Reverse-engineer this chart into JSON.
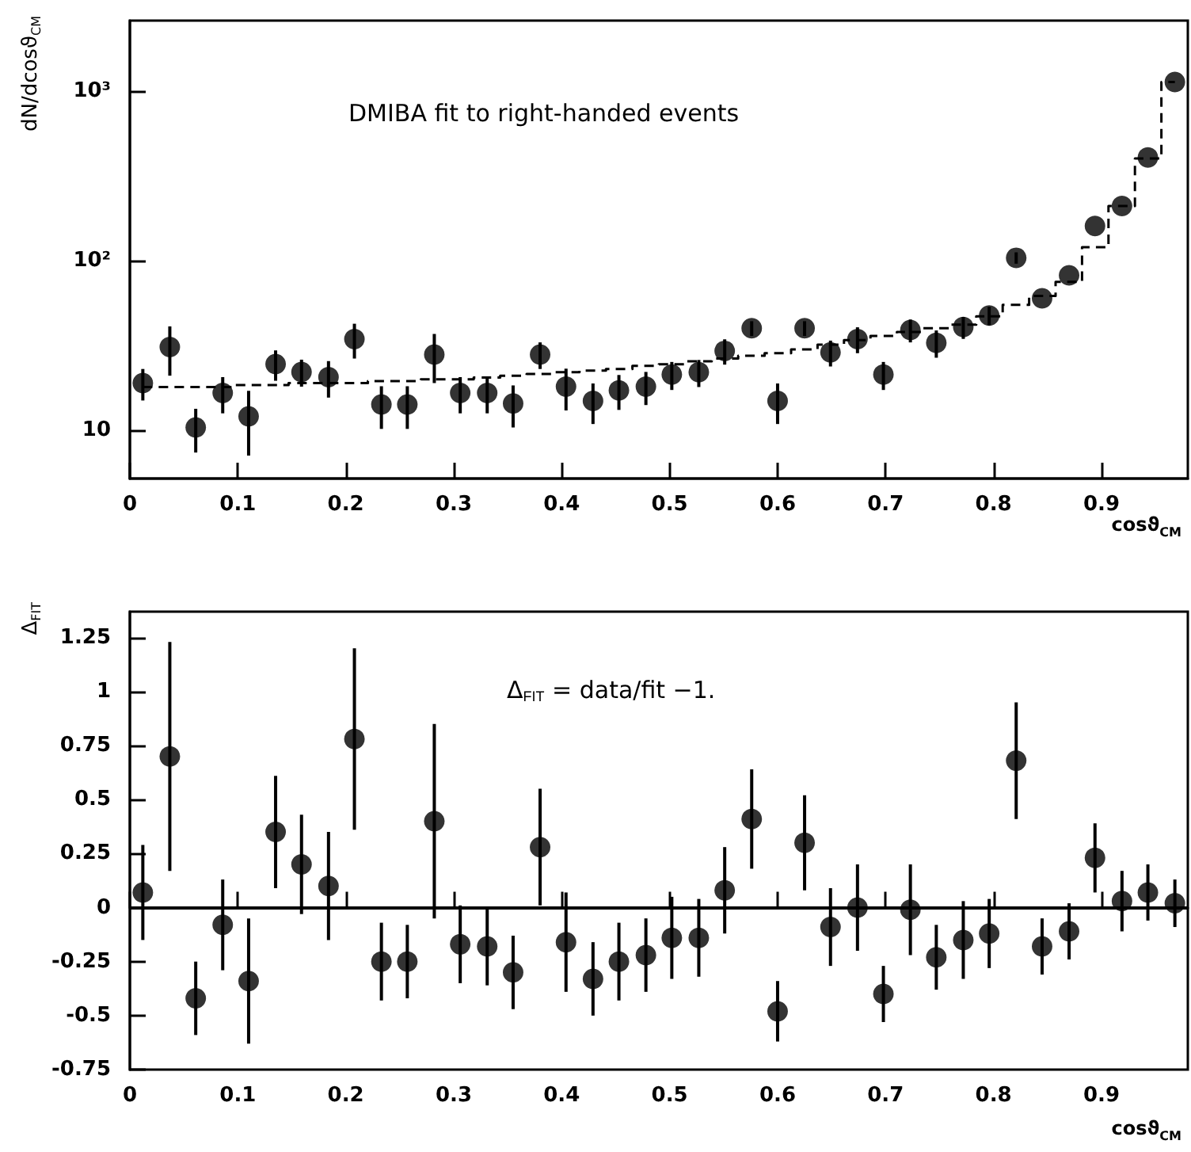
{
  "chart_data": [
    {
      "type": "scatter",
      "annotations": [
        "DMIBA fit to right-handed events"
      ],
      "xlabel": "cosϑ$_{CM}$",
      "ylabel": "dN/dcosϑ$_{CM}$",
      "log": "y",
      "grid": false,
      "marker": "circle",
      "xlim": [
        0,
        0.98
      ],
      "xticks": [
        0,
        0.1,
        0.2,
        0.3,
        0.4,
        0.5,
        0.6,
        0.7,
        0.8,
        0.9
      ],
      "ylim": [
        5.2,
        2600
      ],
      "yticks": [
        10,
        {
          "value": 100,
          "label": "10²"
        },
        {
          "value": 1000,
          "label": "10³"
        }
      ],
      "series": [
        {
          "color": "#000000",
          "x": [
            0.012,
            0.037,
            0.061,
            0.086,
            0.11,
            0.135,
            0.159,
            0.184,
            0.208,
            0.233,
            0.257,
            0.282,
            0.306,
            0.331,
            0.355,
            0.38,
            0.404,
            0.429,
            0.453,
            0.478,
            0.502,
            0.527,
            0.551,
            0.576,
            0.6,
            0.625,
            0.649,
            0.674,
            0.698,
            0.723,
            0.747,
            0.772,
            0.796,
            0.821,
            0.845,
            0.87,
            0.894,
            0.919,
            0.943,
            0.968
          ],
          "values": [
            19,
            31,
            10.4,
            16.6,
            12.1,
            24.6,
            22.1,
            20.6,
            34.5,
            14.2,
            14.2,
            28,
            16.6,
            16.6,
            14.4,
            28,
            18.1,
            14.9,
            17.2,
            18.1,
            21.3,
            22,
            29.4,
            40,
            14.9,
            40,
            28.8,
            34.5,
            21.3,
            39,
            32.8,
            40.6,
            47.5,
            104,
            60,
            82,
            160,
            210,
            406,
            1130
          ],
          "errors": [
            4,
            10,
            3,
            4,
            5,
            5,
            4,
            5,
            8,
            4,
            4,
            9,
            4,
            4,
            4,
            5,
            5,
            4,
            4,
            4,
            4,
            4,
            5,
            4,
            4,
            4,
            5,
            6,
            4,
            6,
            6,
            6,
            6,
            8,
            null,
            null,
            null,
            null,
            null,
            null
          ]
        },
        {
          "type": "step",
          "color": "#000000",
          "line_style": "dashed",
          "marker": "none",
          "x": [
            0.012,
            0.037,
            0.061,
            0.086,
            0.11,
            0.135,
            0.159,
            0.184,
            0.208,
            0.233,
            0.257,
            0.282,
            0.306,
            0.331,
            0.355,
            0.38,
            0.404,
            0.429,
            0.453,
            0.478,
            0.502,
            0.527,
            0.551,
            0.576,
            0.6,
            0.625,
            0.649,
            0.674,
            0.698,
            0.723,
            0.747,
            0.772,
            0.796,
            0.821,
            0.845,
            0.87,
            0.894,
            0.919,
            0.943,
            0.968
          ],
          "values": [
            18,
            18,
            18,
            18,
            18.5,
            18.5,
            19,
            19,
            19,
            19.5,
            19.5,
            20,
            20,
            20.5,
            21,
            21.5,
            22,
            22.5,
            23,
            24,
            24.5,
            25.5,
            26.5,
            27.5,
            28.5,
            30,
            32,
            34,
            36,
            38,
            40,
            42,
            47,
            55,
            62,
            75,
            120,
            210,
            400,
            1130
          ]
        }
      ]
    },
    {
      "type": "scatter",
      "annotations": [
        "Δ$_{FIT}$ = data/fit −1."
      ],
      "xlabel": "cosϑ$_{CM}$",
      "ylabel": "Δ$_{FIT}$",
      "grid": false,
      "marker": "circle",
      "xlim": [
        0,
        0.98
      ],
      "xticks": [
        0,
        0.1,
        0.2,
        0.3,
        0.4,
        0.5,
        0.6,
        0.7,
        0.8,
        0.9
      ],
      "ylim": [
        -0.75,
        1.37
      ],
      "yticks": [
        -0.75,
        -0.5,
        -0.25,
        0,
        0.25,
        0.5,
        0.75,
        1,
        1.25
      ],
      "ref_lines": [
        {
          "axis": "y",
          "value": 0,
          "color": "#000000",
          "line_style": "solid"
        }
      ],
      "series": [
        {
          "color": "#000000",
          "x": [
            0.012,
            0.037,
            0.061,
            0.086,
            0.11,
            0.135,
            0.159,
            0.184,
            0.208,
            0.233,
            0.257,
            0.282,
            0.306,
            0.331,
            0.355,
            0.38,
            0.404,
            0.429,
            0.453,
            0.478,
            0.502,
            0.527,
            0.551,
            0.576,
            0.6,
            0.625,
            0.649,
            0.674,
            0.698,
            0.723,
            0.747,
            0.772,
            0.796,
            0.821,
            0.845,
            0.87,
            0.894,
            0.919,
            0.943,
            0.968
          ],
          "values": [
            0.07,
            0.7,
            -0.42,
            -0.08,
            -0.34,
            0.35,
            0.2,
            0.1,
            0.78,
            -0.25,
            -0.25,
            0.4,
            -0.17,
            -0.18,
            -0.3,
            0.28,
            -0.16,
            -0.33,
            -0.25,
            -0.22,
            -0.14,
            -0.14,
            0.08,
            0.41,
            -0.48,
            0.3,
            -0.09,
            0,
            -0.4,
            -0.01,
            -0.23,
            -0.15,
            -0.12,
            0.68,
            -0.18,
            -0.11,
            0.23,
            0.03,
            0.07,
            0.02
          ],
          "errors": [
            0.22,
            0.53,
            0.17,
            0.21,
            0.29,
            0.26,
            0.23,
            0.25,
            0.42,
            0.18,
            0.17,
            0.45,
            0.18,
            0.18,
            0.17,
            0.27,
            0.23,
            0.17,
            0.18,
            0.17,
            0.19,
            0.18,
            0.2,
            0.23,
            0.14,
            0.22,
            0.18,
            0.2,
            0.13,
            0.21,
            0.15,
            0.18,
            0.16,
            0.27,
            0.13,
            0.13,
            0.16,
            0.14,
            0.13,
            0.11
          ]
        }
      ]
    }
  ]
}
